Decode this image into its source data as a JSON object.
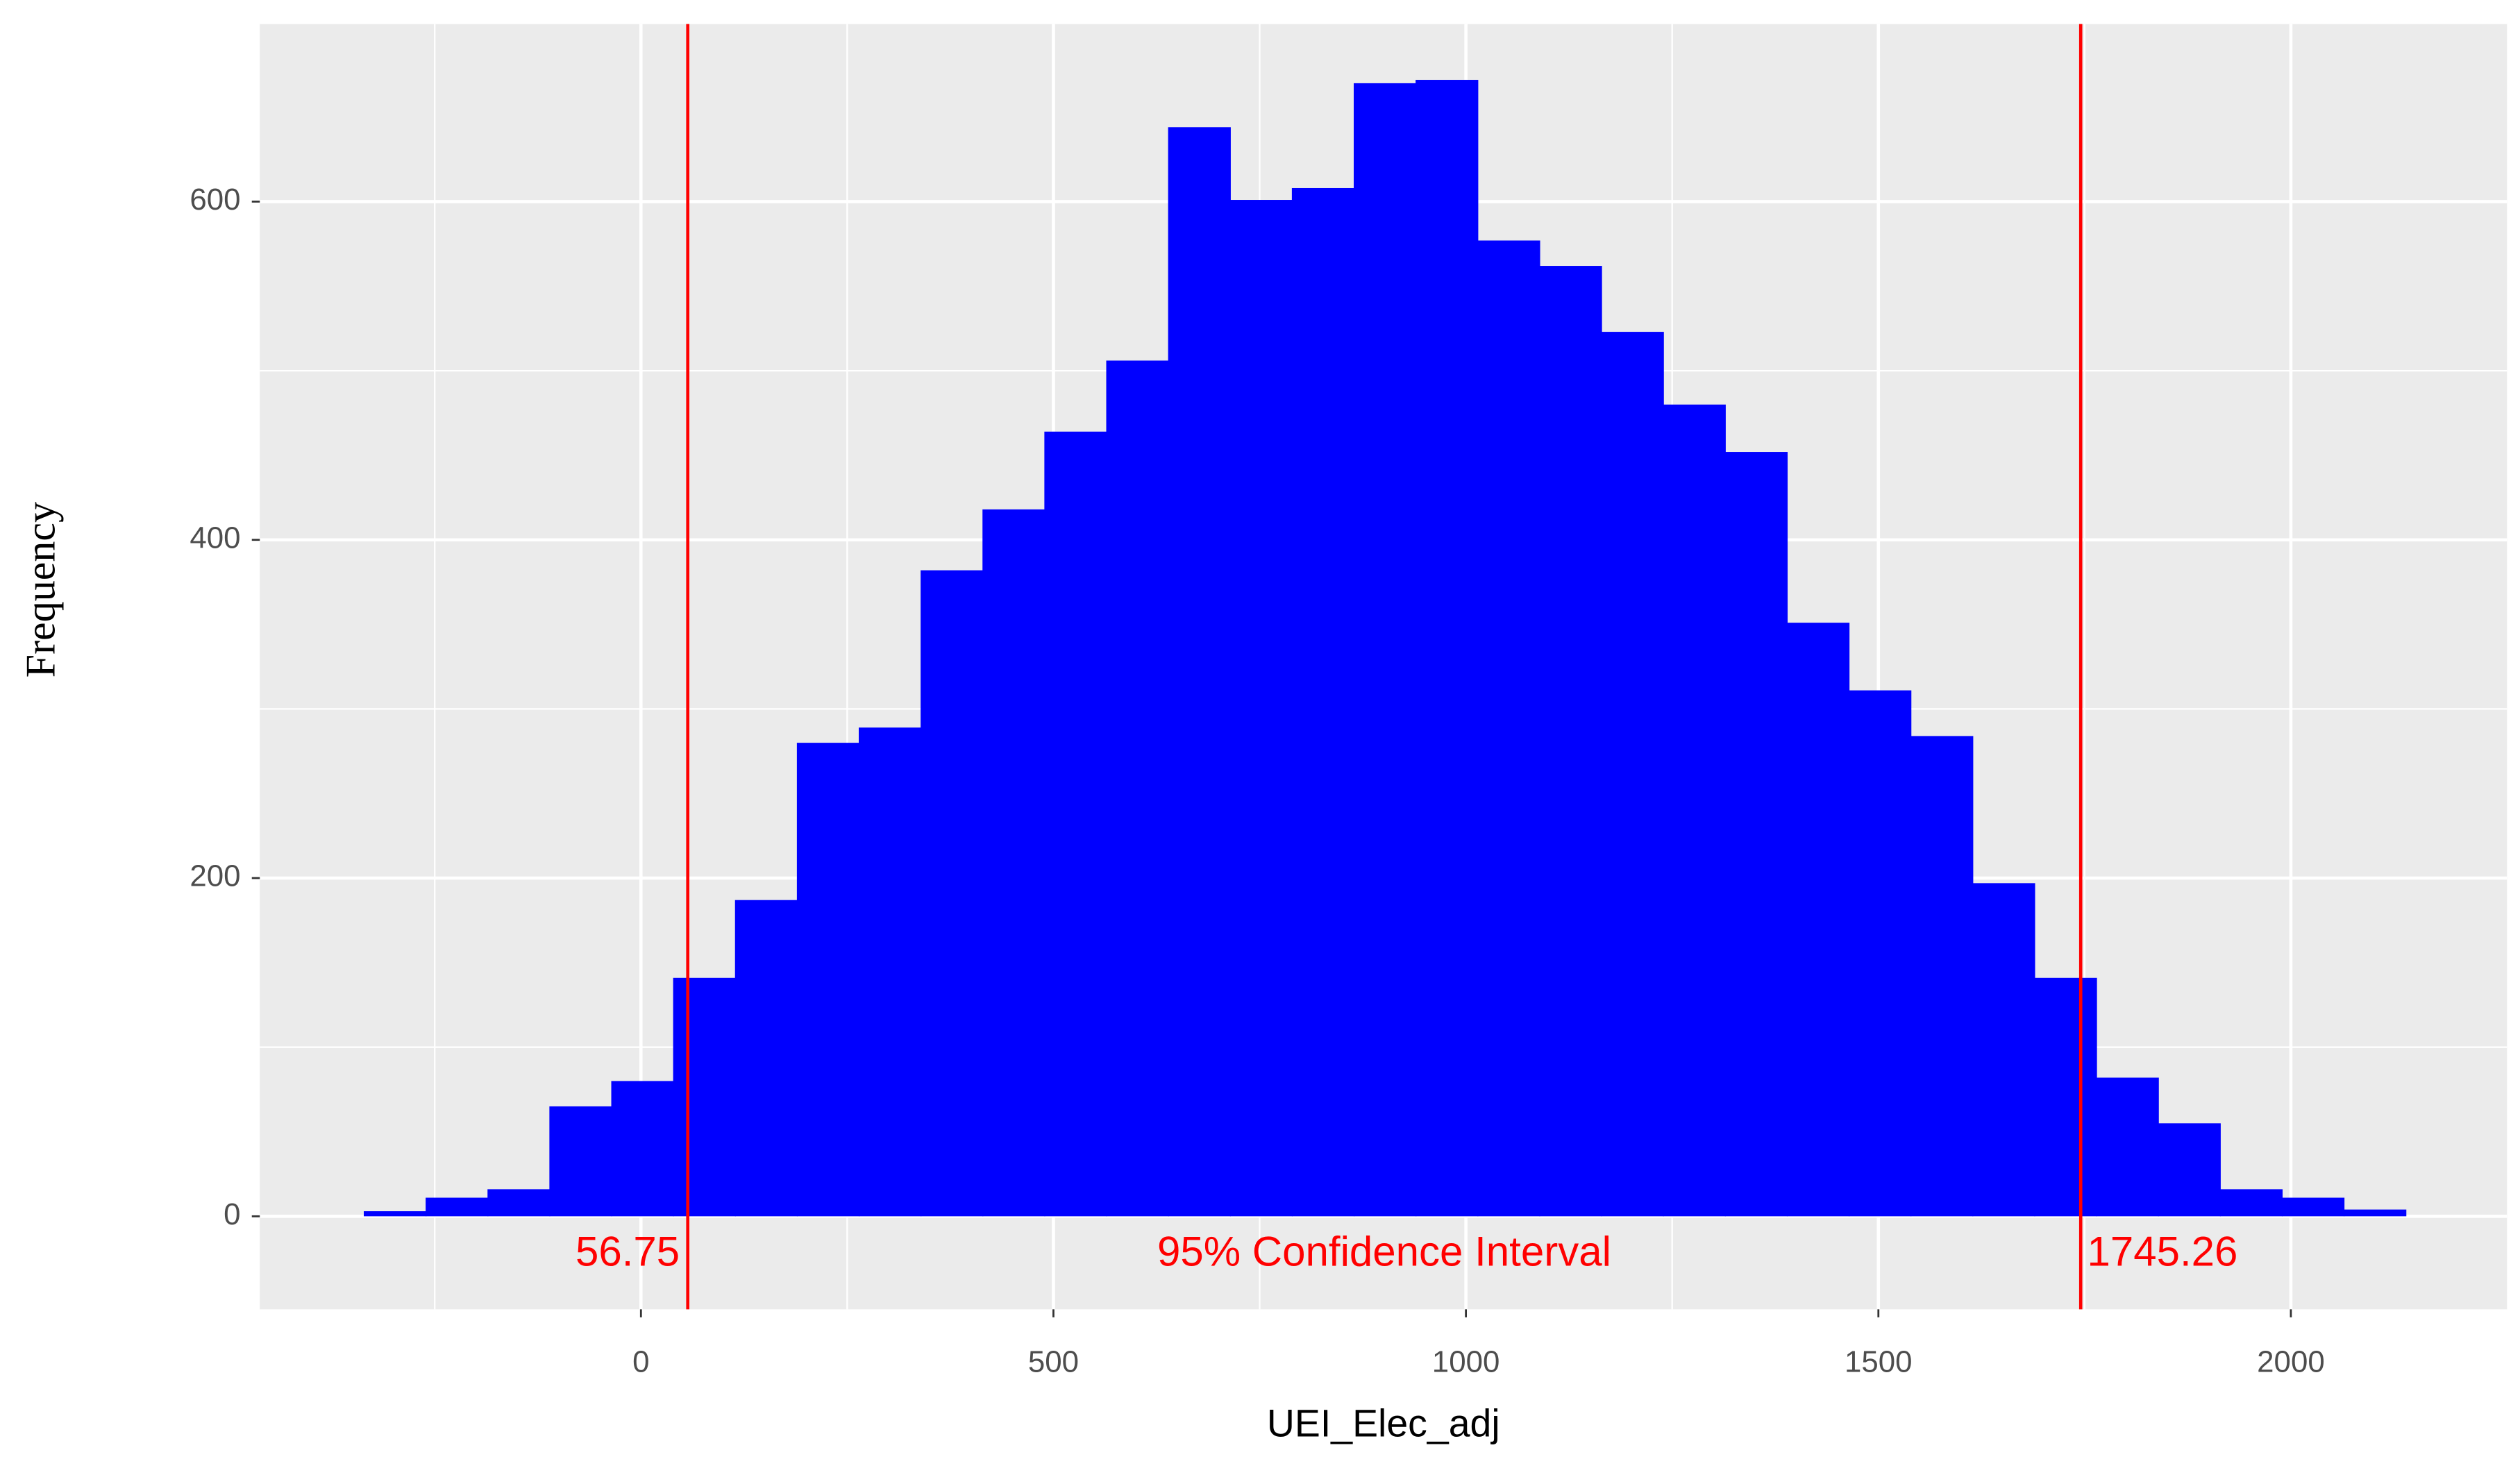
{
  "chart_data": {
    "type": "histogram",
    "x_label": "UEI_Elec_adj",
    "y_label": "Frequency",
    "bins": [
      -336,
      -261,
      -186,
      -111,
      -36,
      39,
      114,
      189,
      264,
      339,
      414,
      489,
      564,
      639,
      714,
      789,
      864,
      939,
      1014,
      1089,
      1164,
      1239,
      1314,
      1389,
      1464,
      1539,
      1614,
      1689,
      1764,
      1839,
      1914,
      1989,
      2064,
      2139
    ],
    "values": [
      3,
      11,
      16,
      65,
      80,
      141,
      187,
      280,
      289,
      382,
      418,
      464,
      506,
      644,
      601,
      608,
      670,
      672,
      577,
      562,
      523,
      480,
      452,
      351,
      311,
      284,
      197,
      141,
      82,
      55,
      16,
      11,
      4
    ],
    "color": "#0000ff",
    "xlim": [
      -462,
      2262
    ],
    "ylim": [
      -55,
      705
    ],
    "xticks": [
      0,
      500,
      1000,
      1500,
      2000
    ],
    "yticks": [
      0,
      200,
      400,
      600
    ],
    "xminor": [
      -250,
      250,
      750,
      1250,
      1750
    ],
    "yminor": [
      100,
      300,
      500
    ],
    "grid": true,
    "vlines": [
      56.75,
      1745.26
    ],
    "vline_color": "#ff0000",
    "annotation": "95% Confidence Interval"
  }
}
